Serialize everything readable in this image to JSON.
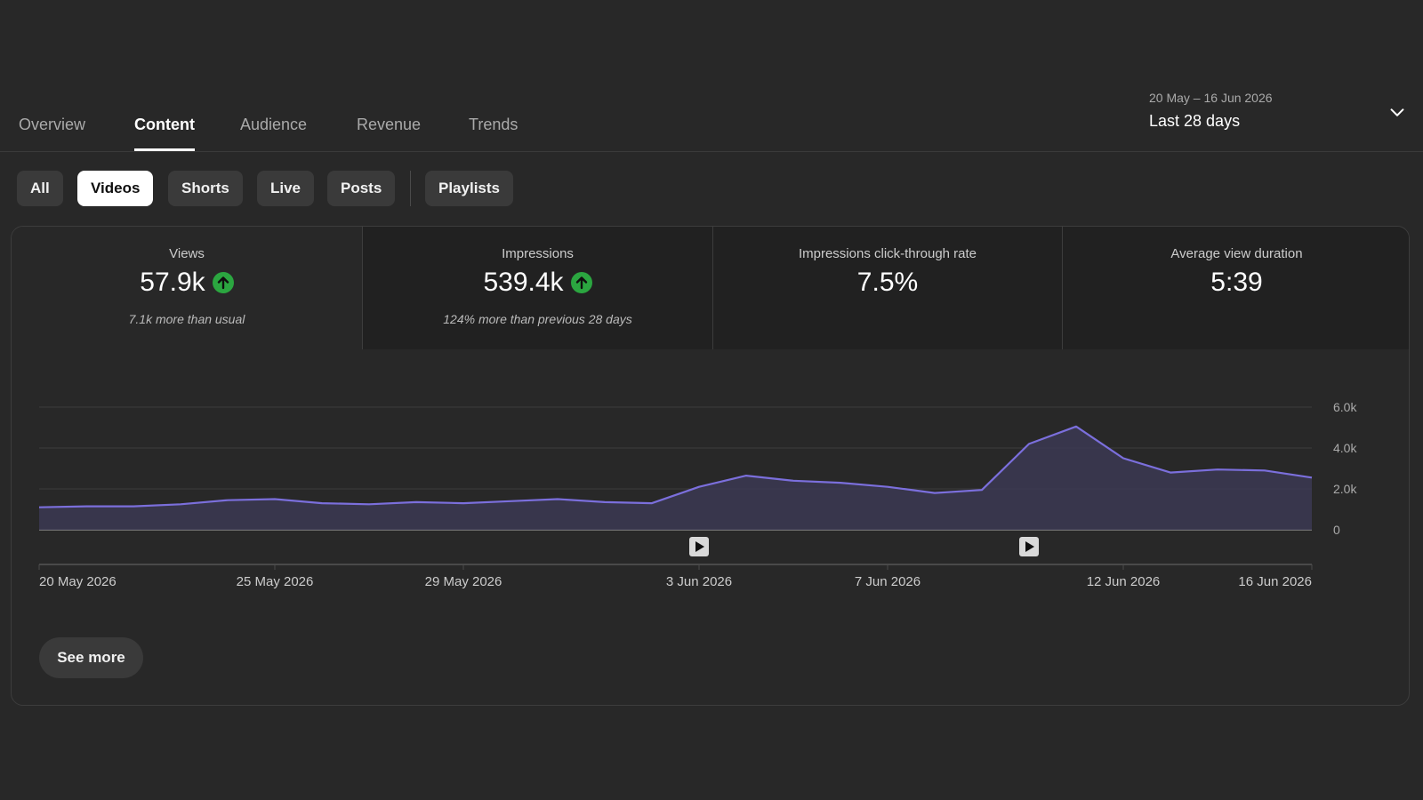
{
  "tabs": [
    {
      "label": "Overview",
      "active": false
    },
    {
      "label": "Content",
      "active": true
    },
    {
      "label": "Audience",
      "active": false
    },
    {
      "label": "Revenue",
      "active": false
    },
    {
      "label": "Trends",
      "active": false
    }
  ],
  "date_picker": {
    "range": "20 May – 16 Jun 2026",
    "label": "Last 28 days",
    "icon": "chevron-down-icon"
  },
  "chips": [
    {
      "label": "All",
      "selected": false
    },
    {
      "label": "Videos",
      "selected": true
    },
    {
      "label": "Shorts",
      "selected": false
    },
    {
      "label": "Live",
      "selected": false
    },
    {
      "label": "Posts",
      "selected": false
    },
    {
      "label": "Playlists",
      "selected": false
    }
  ],
  "metrics": [
    {
      "label": "Views",
      "value": "57.9k",
      "trend": "up",
      "sub": "7.1k more than usual",
      "selected": true
    },
    {
      "label": "Impressions",
      "value": "539.4k",
      "trend": "up",
      "sub": "124% more than previous 28 days",
      "selected": false
    },
    {
      "label": "Impressions click-through rate",
      "value": "7.5%",
      "trend": "",
      "sub": "",
      "selected": false
    },
    {
      "label": "Average view duration",
      "value": "5:39",
      "trend": "",
      "sub": "",
      "selected": false
    }
  ],
  "colors": {
    "background": "#282828",
    "line": "#7b6fdc",
    "area": "#3b3852",
    "trend_up": "#2ba640"
  },
  "chart_data": {
    "type": "area",
    "ylim": [
      0,
      6000
    ],
    "yticks": [
      "6.0k",
      "4.0k",
      "2.0k",
      "0"
    ],
    "ytick_values": [
      6000,
      4000,
      2000,
      0
    ],
    "x_start": "20 May 2026",
    "x_tick_labels": [
      {
        "label": "20 May 2026",
        "day": 0
      },
      {
        "label": "25 May 2026",
        "day": 5
      },
      {
        "label": "29 May 2026",
        "day": 9
      },
      {
        "label": "3 Jun 2026",
        "day": 14
      },
      {
        "label": "7 Jun 2026",
        "day": 18
      },
      {
        "label": "12 Jun 2026",
        "day": 23
      },
      {
        "label": "16 Jun 2026",
        "day": 27
      }
    ],
    "series": [
      {
        "name": "Views",
        "values": [
          1100,
          1150,
          1150,
          1250,
          1450,
          1500,
          1300,
          1250,
          1350,
          1300,
          1400,
          1500,
          1350,
          1300,
          2100,
          2650,
          2400,
          2300,
          2100,
          1800,
          1950,
          4200,
          5050,
          3500,
          2800,
          2950,
          2900,
          2550
        ]
      }
    ],
    "video_markers": [
      {
        "day": 14,
        "icon": "play-icon"
      },
      {
        "day": 21,
        "icon": "play-icon"
      }
    ]
  },
  "see_more_label": "See more"
}
